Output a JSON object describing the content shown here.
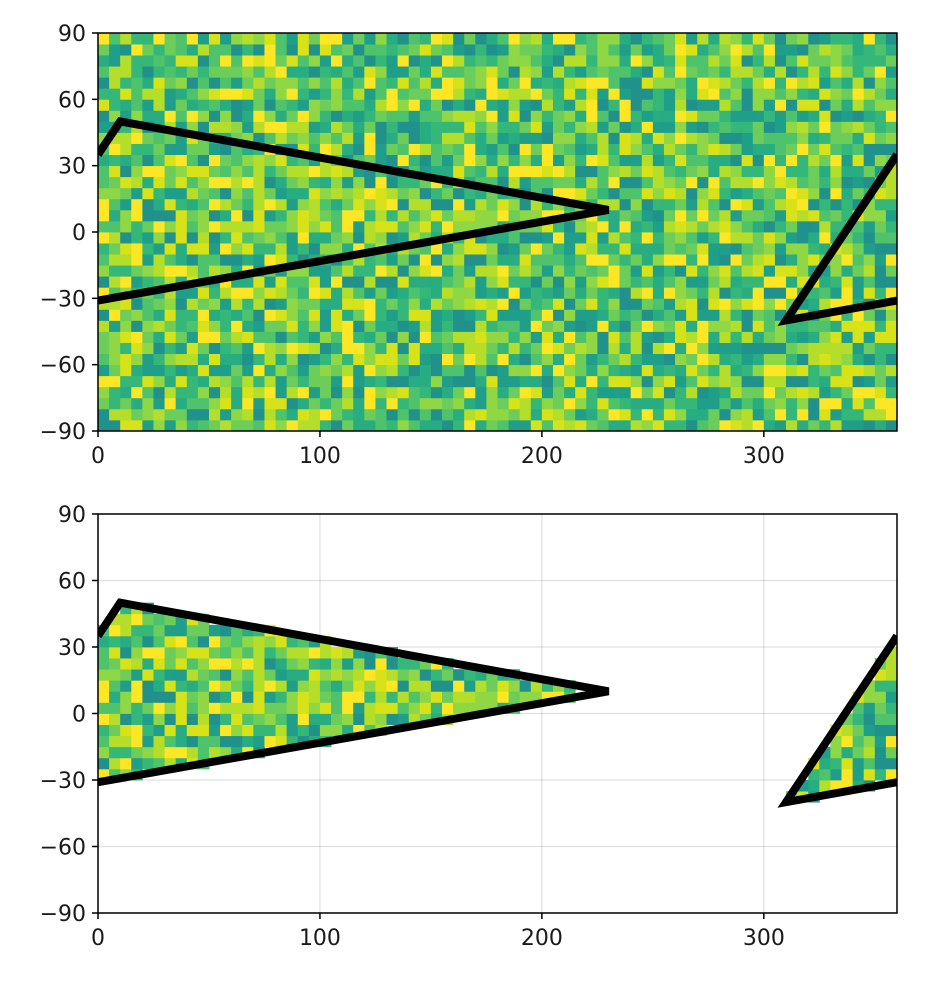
{
  "chart_data": [
    {
      "type": "heatmap",
      "title": "",
      "xlabel": "",
      "ylabel": "",
      "xlim": [
        0,
        360
      ],
      "ylim": [
        -90,
        90
      ],
      "xticks": [
        0,
        100,
        200,
        300
      ],
      "yticks": [
        -90,
        -60,
        -30,
        0,
        30,
        60,
        90
      ],
      "xtick_labels": [
        "0",
        "100",
        "200",
        "300"
      ],
      "ytick_labels": [
        "−90",
        "−60",
        "−30",
        "0",
        "30",
        "60",
        "90"
      ],
      "grid": false,
      "colormap": "viridis",
      "cell_size": [
        5,
        5
      ],
      "mask": "none",
      "polygon": {
        "color": "#000000",
        "x": [
          360,
          310,
          360,
          null,
          0,
          10,
          230,
          0
        ],
        "y": [
          35,
          -40,
          -31,
          null,
          35,
          50,
          10,
          -31
        ]
      }
    },
    {
      "type": "heatmap",
      "title": "",
      "xlabel": "",
      "ylabel": "",
      "xlim": [
        0,
        360
      ],
      "ylim": [
        -90,
        90
      ],
      "xticks": [
        0,
        100,
        200,
        300
      ],
      "yticks": [
        -90,
        -60,
        -30,
        0,
        30,
        60,
        90
      ],
      "xtick_labels": [
        "0",
        "100",
        "200",
        "300"
      ],
      "ytick_labels": [
        "−90",
        "−60",
        "−30",
        "0",
        "30",
        "60",
        "90"
      ],
      "grid": true,
      "colormap": "viridis",
      "cell_size": [
        5,
        5
      ],
      "mask": "inside-polygon",
      "polygon": {
        "color": "#000000",
        "x": [
          360,
          310,
          360,
          null,
          0,
          10,
          230,
          0
        ],
        "y": [
          35,
          -40,
          -31,
          null,
          35,
          50,
          10,
          -31
        ]
      }
    }
  ]
}
